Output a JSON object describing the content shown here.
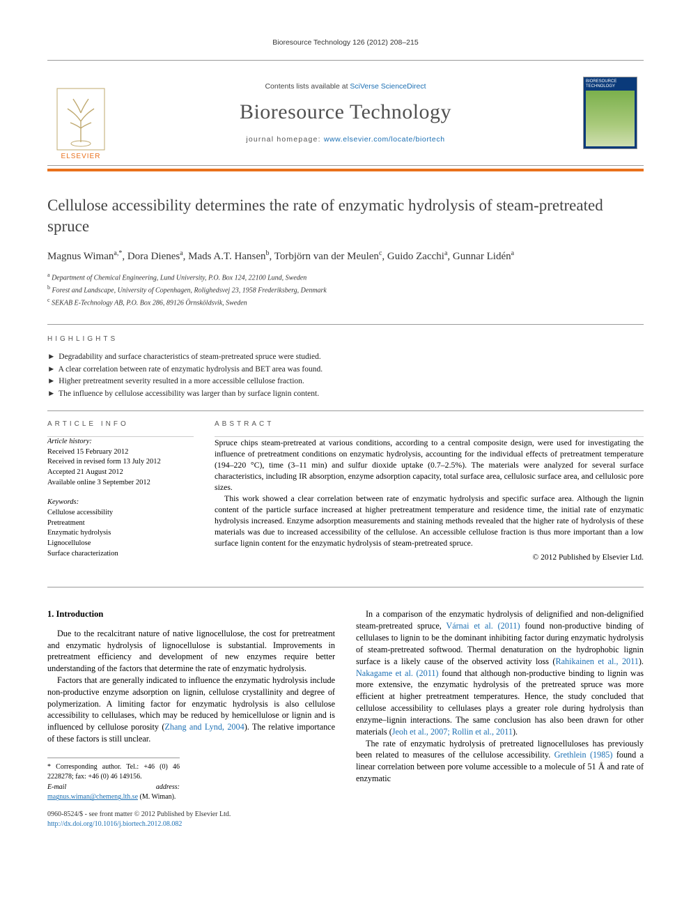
{
  "runningHead": {
    "journal": "Bioresource Technology",
    "cite": "126 (2012) 208–215"
  },
  "masthead": {
    "contentsPrefix": "Contents lists available at ",
    "contentsLink": "SciVerse ScienceDirect",
    "journal": "Bioresource Technology",
    "homepagePrefix": "journal homepage: ",
    "homepage": "www.elsevier.com/locate/biortech",
    "publisher": "ELSEVIER",
    "coverTitle": "BIORESOURCE TECHNOLOGY"
  },
  "title": "Cellulose accessibility determines the rate of enzymatic hydrolysis of steam-pretreated spruce",
  "authors": [
    {
      "name": "Magnus Wiman",
      "marks": "a,*"
    },
    {
      "name": "Dora Dienes",
      "marks": "a"
    },
    {
      "name": "Mads A.T. Hansen",
      "marks": "b"
    },
    {
      "name": "Torbjörn van der Meulen",
      "marks": "c"
    },
    {
      "name": "Guido Zacchi",
      "marks": "a"
    },
    {
      "name": "Gunnar Lidén",
      "marks": "a"
    }
  ],
  "affiliations": [
    {
      "mark": "a",
      "text": "Department of Chemical Engineering, Lund University, P.O. Box 124, 22100 Lund, Sweden"
    },
    {
      "mark": "b",
      "text": "Forest and Landscape, University of Copenhagen, Rolighedsvej 23, 1958 Frederiksberg, Denmark"
    },
    {
      "mark": "c",
      "text": "SEKAB E-Technology AB, P.O. Box 286, 89126 Örnsköldsvik, Sweden"
    }
  ],
  "highlightsLabel": "HIGHLIGHTS",
  "highlights": [
    "Degradability and surface characteristics of steam-pretreated spruce were studied.",
    "A clear correlation between rate of enzymatic hydrolysis and BET area was found.",
    "Higher pretreatment severity resulted in a more accessible cellulose fraction.",
    "The influence by cellulose accessibility was larger than by surface lignin content."
  ],
  "infoLabel": "ARTICLE INFO",
  "absLabel": "ABSTRACT",
  "history": {
    "head": "Article history:",
    "lines": [
      "Received 15 February 2012",
      "Received in revised form 13 July 2012",
      "Accepted 21 August 2012",
      "Available online 3 September 2012"
    ]
  },
  "keywordsHead": "Keywords:",
  "keywords": [
    "Cellulose accessibility",
    "Pretreatment",
    "Enzymatic hydrolysis",
    "Lignocellulose",
    "Surface characterization"
  ],
  "abstract": {
    "p1": "Spruce chips steam-pretreated at various conditions, according to a central composite design, were used for investigating the influence of pretreatment conditions on enzymatic hydrolysis, accounting for the individual effects of pretreatment temperature (194–220 °C), time (3–11 min) and sulfur dioxide uptake (0.7–2.5%). The materials were analyzed for several surface characteristics, including IR absorption, enzyme adsorption capacity, total surface area, cellulosic surface area, and cellulosic pore sizes.",
    "p2": "This work showed a clear correlation between rate of enzymatic hydrolysis and specific surface area. Although the lignin content of the particle surface increased at higher pretreatment temperature and residence time, the initial rate of enzymatic hydrolysis increased. Enzyme adsorption measurements and staining methods revealed that the higher rate of hydrolysis of these materials was due to increased accessibility of the cellulose. An accessible cellulose fraction is thus more important than a low surface lignin content for the enzymatic hydrolysis of steam-pretreated spruce."
  },
  "copyright": "© 2012 Published by Elsevier Ltd.",
  "introHeading": "1. Introduction",
  "intro": {
    "p1": "Due to the recalcitrant nature of native lignocellulose, the cost for pretreatment and enzymatic hydrolysis of lignocellulose is substantial. Improvements in pretreatment efficiency and development of new enzymes require better understanding of the factors that determine the rate of enzymatic hydrolysis.",
    "p2a": "Factors that are generally indicated to influence the enzymatic hydrolysis include non-productive enzyme adsorption on lignin, cellulose crystallinity and degree of polymerization. A limiting factor for enzymatic hydrolysis is also cellulose accessibility to cellulases, which may be reduced by hemicellulose or lignin and is influenced by cellulose porosity (",
    "p2link": "Zhang and Lynd, 2004",
    "p2b": "). The relative importance of these factors is still unclear.",
    "p3a": "In a comparison of the enzymatic hydrolysis of delignified and non-delignified steam-pretreated spruce, ",
    "p3link1": "Várnai et al. (2011)",
    "p3b": " found non-productive binding of cellulases to lignin to be the dominant inhibiting factor during enzymatic hydrolysis of steam-pretreated softwood. Thermal denaturation on the hydrophobic lignin surface is a likely cause of the observed activity loss (",
    "p3link2": "Rahikainen et al., 2011",
    "p3c": "). ",
    "p3link3": "Nakagame et al. (2011)",
    "p3d": " found that although non-productive binding to lignin was more extensive, the enzymatic hydrolysis of the pretreated spruce was more efficient at higher pretreatment temperatures. Hence, the study concluded that cellulose accessibility to cellulases plays a greater role during hydrolysis than enzyme–lignin interactions. The same conclusion has also been drawn for other materials (",
    "p3link4": "Jeoh et al., 2007; Rollin et al., 2011",
    "p3e": ").",
    "p4a": "The rate of enzymatic hydrolysis of pretreated lignocelluloses has previously been related to measures of the cellulose accessibility. ",
    "p4link": "Grethlein (1985)",
    "p4b": " found a linear correlation between pore volume accessible to a molecule of 51 Å and rate of enzymatic"
  },
  "corr": {
    "line1": "* Corresponding author. Tel.: +46 (0) 46 2228278; fax: +46 (0) 46 149156.",
    "emailLabel": "E-mail address:",
    "email": "magnus.wiman@chemeng.lth.se",
    "who": "(M. Wiman)."
  },
  "footer": {
    "line1": "0960-8524/$ - see front matter © 2012 Published by Elsevier Ltd.",
    "doi": "http://dx.doi.org/10.1016/j.biortech.2012.08.082"
  },
  "colors": {
    "orange": "#e9711c",
    "link": "#1b6fb3",
    "coverBg": "#0a3a7a"
  }
}
